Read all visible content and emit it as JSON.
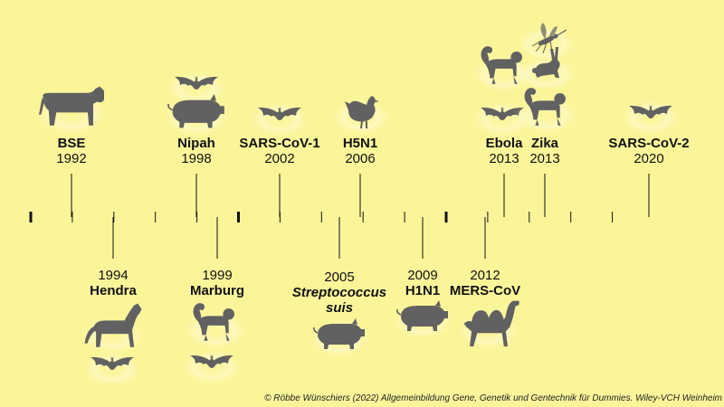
{
  "events": [
    {
      "id": "bse",
      "year": "1992",
      "name": "BSE",
      "name2": "",
      "italic": false,
      "side": "top",
      "animals": [
        "cow"
      ]
    },
    {
      "id": "hendra",
      "year": "1994",
      "name": "Hendra",
      "name2": "",
      "italic": false,
      "side": "bottom",
      "animals": [
        "horse",
        "bat"
      ]
    },
    {
      "id": "nipah",
      "year": "1998",
      "name": "Nipah",
      "name2": "",
      "italic": false,
      "side": "top",
      "animals": [
        "bat",
        "pig"
      ]
    },
    {
      "id": "marburg",
      "year": "1999",
      "name": "Marburg",
      "name2": "",
      "italic": false,
      "side": "bottom",
      "animals": [
        "monkey",
        "bat"
      ]
    },
    {
      "id": "sars1",
      "year": "2002",
      "name": "SARS-CoV-1",
      "name2": "",
      "italic": false,
      "side": "top",
      "animals": [
        "bat"
      ]
    },
    {
      "id": "strep",
      "year": "2005",
      "name": "Streptococcus",
      "name2": "suis",
      "italic": true,
      "side": "bottom",
      "animals": [
        "pig"
      ]
    },
    {
      "id": "h5n1",
      "year": "2006",
      "name": "H5N1",
      "name2": "",
      "italic": false,
      "side": "top",
      "animals": [
        "chicken"
      ]
    },
    {
      "id": "h1n1",
      "year": "2009",
      "name": "H1N1",
      "name2": "",
      "italic": false,
      "side": "bottom",
      "animals": [
        "pig"
      ]
    },
    {
      "id": "mers",
      "year": "2012",
      "name": "MERS-CoV",
      "name2": "",
      "italic": false,
      "side": "bottom",
      "animals": [
        "camel"
      ]
    },
    {
      "id": "ebola",
      "year": "2013",
      "name": "Ebola",
      "name2": "",
      "italic": false,
      "side": "top",
      "animals": [
        "monkey",
        "bat"
      ]
    },
    {
      "id": "zika",
      "year": "2013",
      "name": "Zika",
      "name2": "",
      "italic": false,
      "side": "top",
      "animals": [
        "mosquito",
        "rabbit",
        "monkey"
      ]
    },
    {
      "id": "sars2",
      "year": "2020",
      "name": "SARS-CoV-2",
      "name2": "",
      "italic": false,
      "side": "top",
      "animals": [
        "bat"
      ]
    }
  ],
  "axis": {
    "start_year": 1991,
    "end_year": 2020,
    "major_every": 10
  },
  "credit": "© Röbbe Wünschiers (2022) Allgemeinbildung Gene, Genetik und Gentechnik für Dummies. Wiley-VCH Weinheim",
  "colors": {
    "background": "#fbf59a",
    "silhouette": "#616161",
    "line": "#111111"
  }
}
